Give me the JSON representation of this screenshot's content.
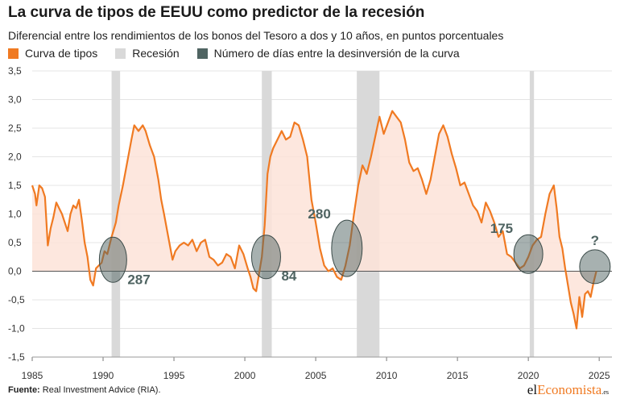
{
  "header": {
    "title": "La curva de tipos de EEUU como predictor de la recesión",
    "subtitle": "Diferencial entre los rendimientos de los bonos del Tesoro a dos y 10 años, en puntos porcentuales"
  },
  "legend": {
    "items": [
      {
        "label": "Curva de tipos",
        "color": "#f07a22"
      },
      {
        "label": "Recesión",
        "color": "#d9d9d9"
      },
      {
        "label": "Número de días entre la desinversión de la curva",
        "color": "#4f6462"
      }
    ]
  },
  "footer": {
    "source_label": "Fuente:",
    "source_text": "Real Investment Advice (RIA).",
    "brand_prefix": "el",
    "brand_accent": "Economista",
    "brand_suffix": ".es"
  },
  "chart_data": {
    "type": "area",
    "title": "La curva de tipos de EEUU como predictor de la recesión",
    "subtitle": "Diferencial entre los rendimientos de los bonos del Tesoro a dos y 10 años, en puntos porcentuales",
    "xlabel": "",
    "ylabel": "",
    "xlim": [
      1985,
      2025.9
    ],
    "ylim": [
      -1.5,
      3.5
    ],
    "x_ticks": [
      1985,
      1990,
      1995,
      2000,
      2005,
      2010,
      2015,
      2020,
      2025
    ],
    "x_tick_labels": [
      "1985",
      "1990",
      "1995",
      "2000",
      "2005",
      "2010",
      "2015",
      "2020",
      "2025"
    ],
    "y_ticks": [
      3.5,
      3.0,
      2.5,
      2.0,
      1.5,
      1.0,
      0.5,
      0.0,
      -0.5,
      -1.0,
      -1.5
    ],
    "y_tick_labels": [
      "3,5",
      "3,0",
      "2,5",
      "2,0",
      "1,5",
      "1,0",
      "0,5",
      "0,0",
      "-0,5",
      "-1,0",
      "-1,5"
    ],
    "grid": true,
    "legend_position": "top-left",
    "colors": {
      "line": "#f07a22",
      "fill": "#fde3d8",
      "recession": "#d9d9d9",
      "ellipse": "#4f6462",
      "zero_line": "#555555",
      "grid": "#e4e4e4"
    },
    "series": [
      {
        "name": "Curva de tipos",
        "x": [
          1985.0,
          1985.2,
          1985.3,
          1985.5,
          1985.7,
          1985.9,
          1986.1,
          1986.3,
          1986.5,
          1986.7,
          1986.9,
          1987.1,
          1987.3,
          1987.5,
          1987.7,
          1987.9,
          1988.1,
          1988.3,
          1988.5,
          1988.7,
          1988.9,
          1989.1,
          1989.3,
          1989.5,
          1989.7,
          1989.9,
          1990.1,
          1990.3,
          1990.6,
          1990.9,
          1991.1,
          1991.4,
          1991.7,
          1992.0,
          1992.2,
          1992.5,
          1992.8,
          1993.0,
          1993.3,
          1993.6,
          1993.9,
          1994.1,
          1994.3,
          1994.6,
          1994.9,
          1995.1,
          1995.4,
          1995.7,
          1996.0,
          1996.3,
          1996.6,
          1996.9,
          1997.2,
          1997.5,
          1997.8,
          1998.1,
          1998.4,
          1998.7,
          1999.0,
          1999.3,
          1999.6,
          1999.9,
          2000.2,
          2000.4,
          2000.6,
          2000.8,
          2001.0,
          2001.2,
          2001.4,
          2001.6,
          2001.8,
          2002.0,
          2002.3,
          2002.6,
          2002.9,
          2003.2,
          2003.5,
          2003.8,
          2004.1,
          2004.4,
          2004.7,
          2005.0,
          2005.3,
          2005.6,
          2005.9,
          2006.2,
          2006.5,
          2006.8,
          2007.1,
          2007.4,
          2007.7,
          2008.0,
          2008.3,
          2008.6,
          2008.9,
          2009.2,
          2009.5,
          2009.8,
          2010.1,
          2010.4,
          2010.7,
          2011.0,
          2011.3,
          2011.6,
          2011.9,
          2012.2,
          2012.5,
          2012.8,
          2013.1,
          2013.4,
          2013.7,
          2014.0,
          2014.3,
          2014.6,
          2014.9,
          2015.2,
          2015.5,
          2015.8,
          2016.1,
          2016.4,
          2016.7,
          2017.0,
          2017.3,
          2017.6,
          2017.9,
          2018.2,
          2018.5,
          2018.8,
          2019.1,
          2019.4,
          2019.7,
          2020.0,
          2020.3,
          2020.6,
          2020.9,
          2021.2,
          2021.5,
          2021.8,
          2022.0,
          2022.2,
          2022.4,
          2022.6,
          2022.8,
          2023.0,
          2023.2,
          2023.4,
          2023.6,
          2023.8,
          2024.0,
          2024.2,
          2024.4,
          2024.6,
          2024.8
        ],
        "values": [
          1.5,
          1.35,
          1.15,
          1.5,
          1.45,
          1.3,
          0.45,
          0.75,
          0.95,
          1.2,
          1.1,
          1.0,
          0.85,
          0.7,
          1.0,
          1.15,
          1.1,
          1.25,
          0.9,
          0.5,
          0.25,
          -0.15,
          -0.25,
          0.05,
          0.1,
          0.15,
          0.35,
          0.3,
          0.6,
          0.85,
          1.15,
          1.5,
          1.9,
          2.3,
          2.55,
          2.45,
          2.55,
          2.45,
          2.2,
          2.0,
          1.6,
          1.25,
          1.0,
          0.6,
          0.2,
          0.35,
          0.45,
          0.5,
          0.45,
          0.55,
          0.35,
          0.5,
          0.55,
          0.25,
          0.2,
          0.1,
          0.15,
          0.3,
          0.25,
          0.05,
          0.45,
          0.3,
          0.05,
          -0.1,
          -0.3,
          -0.35,
          -0.05,
          0.25,
          0.8,
          1.7,
          2.0,
          2.15,
          2.3,
          2.45,
          2.3,
          2.35,
          2.6,
          2.55,
          2.3,
          2.0,
          1.25,
          0.85,
          0.4,
          0.1,
          0.0,
          0.05,
          -0.1,
          -0.15,
          0.1,
          0.45,
          1.0,
          1.5,
          1.85,
          1.7,
          2.0,
          2.35,
          2.7,
          2.4,
          2.6,
          2.8,
          2.7,
          2.6,
          2.3,
          1.9,
          1.75,
          1.8,
          1.6,
          1.35,
          1.6,
          2.0,
          2.4,
          2.55,
          2.35,
          2.05,
          1.8,
          1.5,
          1.55,
          1.35,
          1.15,
          1.05,
          0.85,
          1.2,
          1.05,
          0.85,
          0.6,
          0.7,
          0.3,
          0.25,
          0.15,
          0.05,
          0.1,
          0.25,
          0.45,
          0.55,
          0.6,
          1.0,
          1.35,
          1.5,
          1.1,
          0.6,
          0.4,
          0.05,
          -0.25,
          -0.55,
          -0.75,
          -1.0,
          -0.45,
          -0.8,
          -0.4,
          -0.35,
          -0.45,
          -0.2,
          0.0
        ]
      }
    ],
    "recessions": [
      [
        1990.6,
        1991.2
      ],
      [
        2001.2,
        2001.9
      ],
      [
        2007.9,
        2009.5
      ],
      [
        2020.1,
        2020.4
      ]
    ],
    "annotations": [
      {
        "label": "287",
        "x": 1990.7,
        "y": 0.2
      },
      {
        "label": "84",
        "x": 2001.5,
        "y": 0.25
      },
      {
        "label": "280",
        "x": 2007.2,
        "y": 0.4
      },
      {
        "label": "175",
        "x": 2020.0,
        "y": 0.3
      },
      {
        "label": "?",
        "x": 2024.7,
        "y": 0.08
      }
    ]
  }
}
